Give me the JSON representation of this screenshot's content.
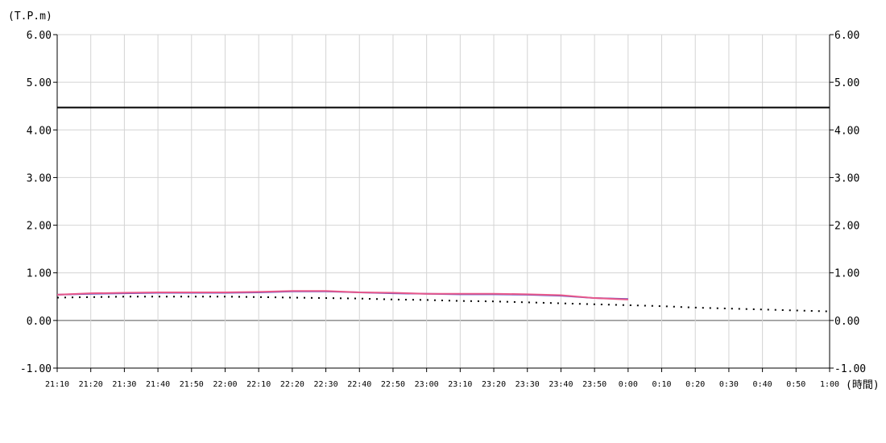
{
  "chart_data": {
    "type": "line",
    "y_unit_label": "(T.P.m)",
    "x_unit_label": "(時間)",
    "ylim": [
      -1.0,
      6.0
    ],
    "y_ticks": [
      "6.00",
      "5.00",
      "4.00",
      "3.00",
      "2.00",
      "1.00",
      "0.00",
      "-1.00"
    ],
    "y_tick_values": [
      6,
      5,
      4,
      3,
      2,
      1,
      0,
      -1
    ],
    "x_ticks": [
      "21:10",
      "21:20",
      "21:30",
      "21:40",
      "21:50",
      "22:00",
      "22:10",
      "22:20",
      "22:30",
      "22:40",
      "22:50",
      "23:00",
      "23:10",
      "23:20",
      "23:30",
      "23:40",
      "23:50",
      "0:00",
      "0:10",
      "0:20",
      "0:30",
      "0:40",
      "0:50",
      "1:00"
    ],
    "grid": true,
    "reference_line": {
      "value": 4.47,
      "color": "#000000"
    },
    "series": [
      {
        "style": "solid",
        "color": "#5b4fc4",
        "values": [
          0.54,
          0.56,
          0.57,
          0.58,
          0.58,
          0.58,
          0.59,
          0.61,
          0.61,
          0.59,
          0.57,
          0.56,
          0.55,
          0.55,
          0.54,
          0.52,
          0.47,
          0.45
        ]
      },
      {
        "style": "solid",
        "color": "#e8588a",
        "values": [
          0.54,
          0.57,
          0.58,
          0.59,
          0.59,
          0.59,
          0.6,
          0.62,
          0.62,
          0.59,
          0.58,
          0.56,
          0.56,
          0.56,
          0.55,
          0.53,
          0.47,
          0.44
        ]
      },
      {
        "style": "dotted",
        "color": "#000000",
        "values": [
          0.48,
          0.49,
          0.5,
          0.5,
          0.5,
          0.5,
          0.49,
          0.48,
          0.47,
          0.46,
          0.44,
          0.43,
          0.41,
          0.4,
          0.38,
          0.36,
          0.34,
          0.32,
          0.3,
          0.27,
          0.25,
          0.23,
          0.21,
          0.19
        ]
      }
    ]
  }
}
